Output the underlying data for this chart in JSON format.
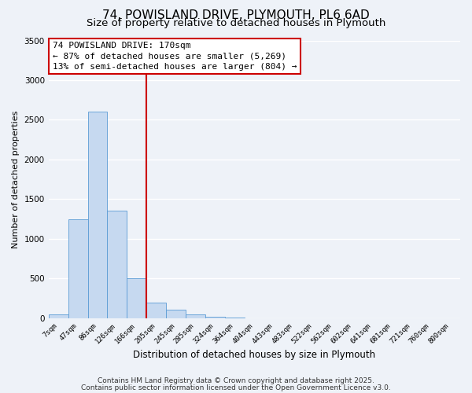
{
  "title": "74, POWISLAND DRIVE, PLYMOUTH, PL6 6AD",
  "subtitle": "Size of property relative to detached houses in Plymouth",
  "xlabel": "Distribution of detached houses by size in Plymouth",
  "ylabel": "Number of detached properties",
  "bar_color": "#c6d9f0",
  "bar_edge_color": "#5b9bd5",
  "categories": [
    "7sqm",
    "47sqm",
    "86sqm",
    "126sqm",
    "166sqm",
    "205sqm",
    "245sqm",
    "285sqm",
    "324sqm",
    "364sqm",
    "404sqm",
    "443sqm",
    "483sqm",
    "522sqm",
    "562sqm",
    "602sqm",
    "641sqm",
    "681sqm",
    "721sqm",
    "760sqm",
    "800sqm"
  ],
  "values": [
    50,
    1250,
    2600,
    1360,
    500,
    200,
    110,
    45,
    15,
    5,
    2,
    1,
    0,
    0,
    0,
    0,
    0,
    0,
    0,
    0,
    0
  ],
  "ylim": [
    0,
    3500
  ],
  "yticks": [
    0,
    500,
    1000,
    1500,
    2000,
    2500,
    3000,
    3500
  ],
  "vline_x": 4.5,
  "vline_color": "#cc0000",
  "annotation_title": "74 POWISLAND DRIVE: 170sqm",
  "annotation_line1": "← 87% of detached houses are smaller (5,269)",
  "annotation_line2": "13% of semi-detached houses are larger (804) →",
  "annotation_box_color": "#ffffff",
  "annotation_box_edge": "#cc0000",
  "footer1": "Contains HM Land Registry data © Crown copyright and database right 2025.",
  "footer2": "Contains public sector information licensed under the Open Government Licence v3.0.",
  "background_color": "#eef2f8",
  "grid_color": "#ffffff",
  "title_fontsize": 11,
  "subtitle_fontsize": 9.5,
  "annotation_fontsize": 8,
  "footer_fontsize": 6.5
}
